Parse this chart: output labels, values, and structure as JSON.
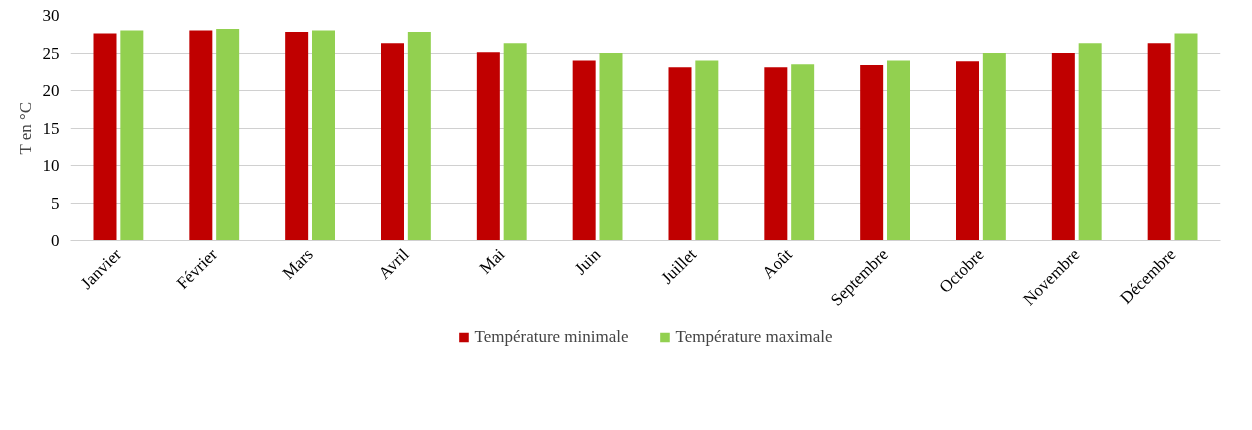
{
  "chart_data": {
    "type": "bar",
    "ylabel": "T en °C",
    "categories": [
      "Janvier",
      "Février",
      "Mars",
      "Avril",
      "Mai",
      "Juin",
      "Juillet",
      "Août",
      "Septembre",
      "Octobre",
      "Novembre",
      "Décembre"
    ],
    "series": [
      {
        "name": "Température minimale",
        "color": "#c00000",
        "values": [
          27.6,
          28.0,
          27.8,
          26.3,
          25.1,
          24.0,
          23.1,
          23.1,
          23.4,
          23.9,
          25.0,
          26.3
        ]
      },
      {
        "name": "Température maximale",
        "color": "#92d050",
        "values": [
          28.0,
          28.2,
          28.0,
          27.8,
          26.3,
          25.0,
          24.0,
          23.5,
          24.0,
          25.0,
          26.3,
          27.6
        ]
      }
    ],
    "ylim": [
      0,
      30
    ],
    "yticks": [
      0,
      5,
      10,
      15,
      20,
      25,
      30
    ],
    "grid": "y",
    "legend": "bottom"
  }
}
